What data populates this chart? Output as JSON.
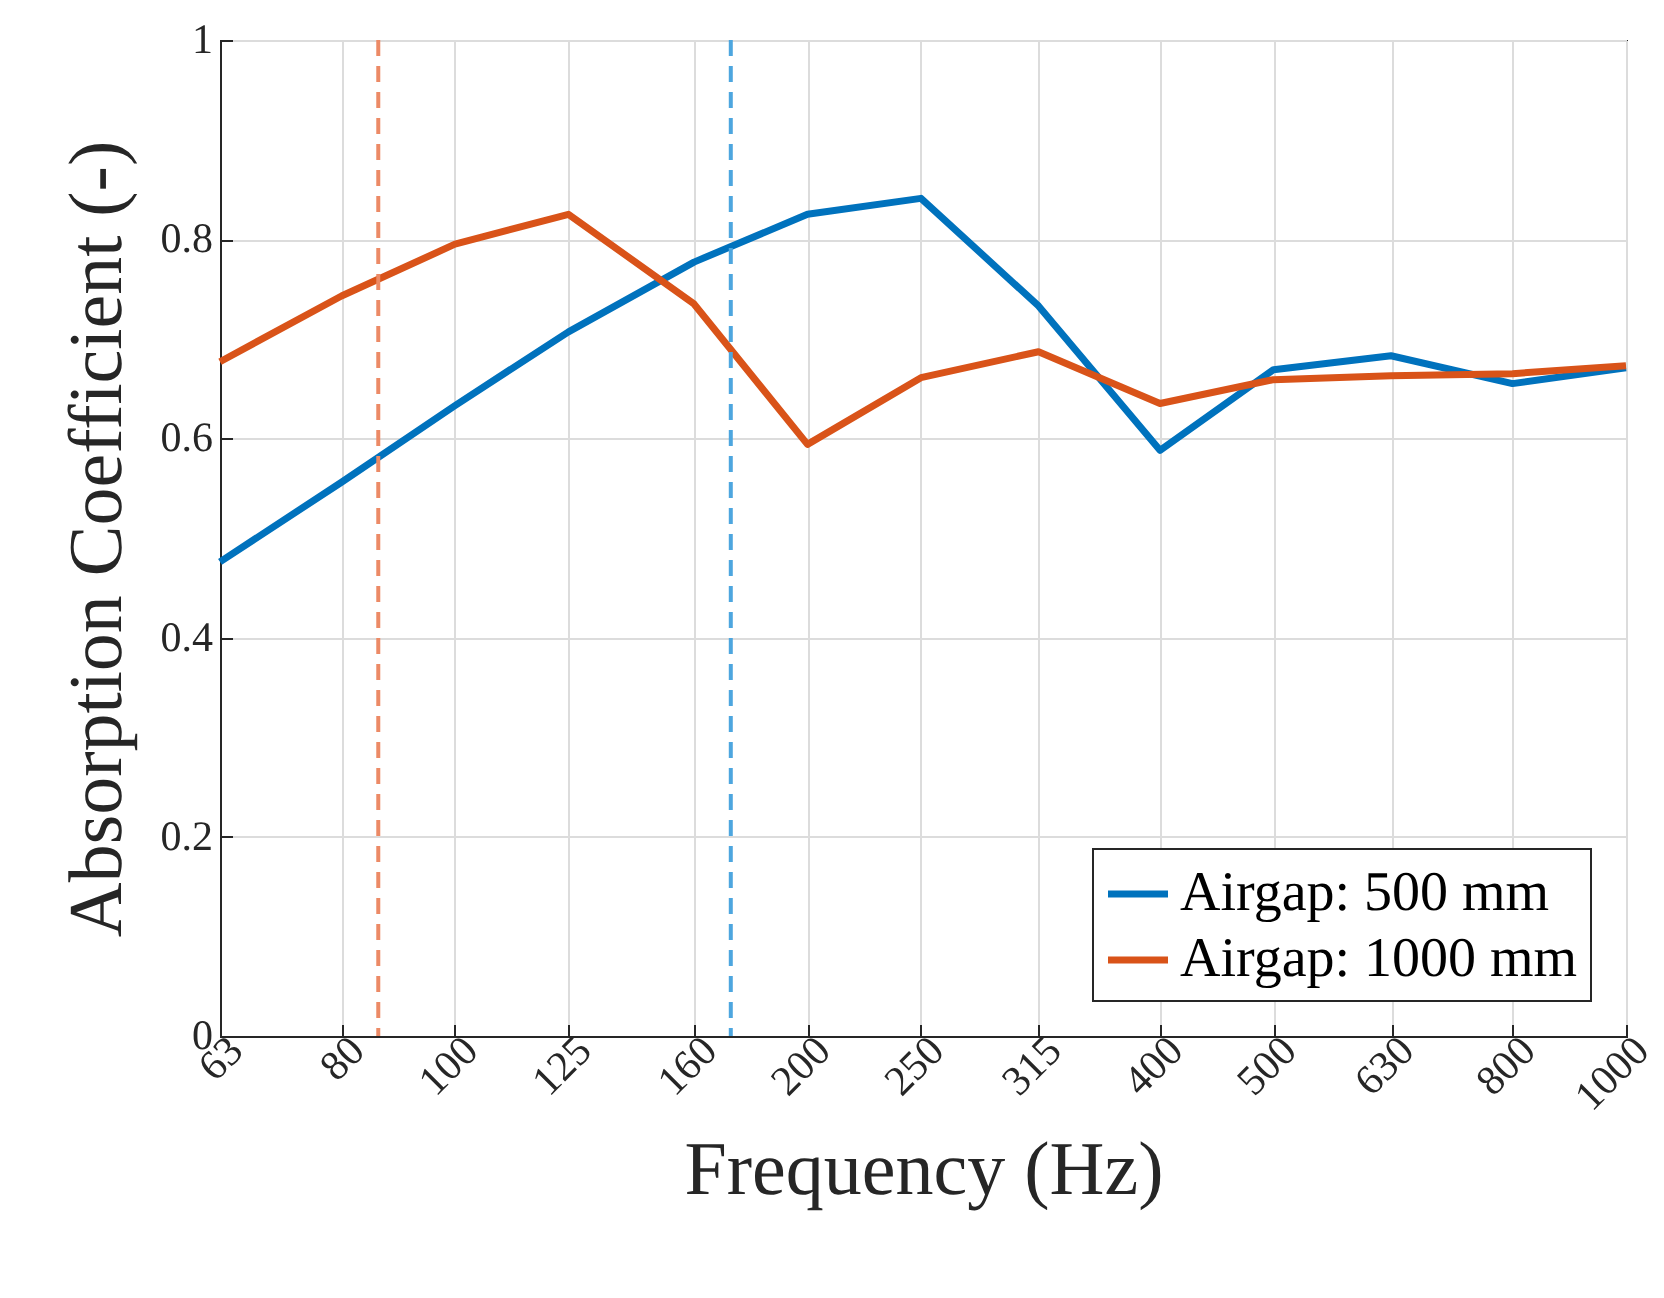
{
  "chart_data": {
    "type": "line",
    "xlabel": "Frequency (Hz)",
    "ylabel": "Absorption Coefficient (-)",
    "x": [
      63,
      80,
      100,
      125,
      160,
      200,
      250,
      315,
      400,
      500,
      630,
      800,
      1000
    ],
    "series": [
      {
        "name": "Airgap: 500 mm",
        "color": "#0072bd",
        "values": [
          0.476,
          0.556,
          0.633,
          0.707,
          0.777,
          0.825,
          0.841,
          0.733,
          0.588,
          0.669,
          0.683,
          0.655,
          0.671
        ]
      },
      {
        "name": "Airgap: 1000 mm",
        "color": "#d95319",
        "values": [
          0.677,
          0.743,
          0.795,
          0.825,
          0.735,
          0.594,
          0.661,
          0.687,
          0.635,
          0.659,
          0.663,
          0.665,
          0.673
        ]
      }
    ],
    "log": "x",
    "xlim": [
      63,
      1000
    ],
    "xticks": [
      63,
      80,
      100,
      125,
      160,
      200,
      250,
      315,
      400,
      500,
      630,
      800,
      1000
    ],
    "ylim": [
      0,
      1
    ],
    "yticks": [
      0,
      0.2,
      0.4,
      0.6,
      0.8,
      1
    ],
    "ref_lines": [
      {
        "axis": "x",
        "value": 86,
        "color": "#ec8a66",
        "line_style": "dashed"
      },
      {
        "axis": "x",
        "value": 172,
        "color": "#4da6df",
        "line_style": "dashed"
      }
    ],
    "grid": true,
    "legend": "bottom right",
    "line_style": "solid",
    "marker": "none"
  }
}
